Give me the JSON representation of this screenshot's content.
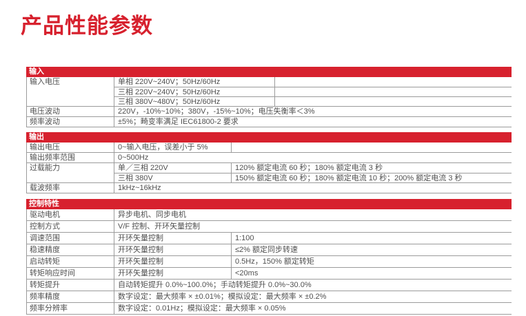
{
  "page": {
    "title": "产品性能参数"
  },
  "colors": {
    "accent_red": "#D7212E",
    "border_gray": "#9b9b9b",
    "text_gray": "#4f4f4f"
  },
  "table": {
    "sections": [
      {
        "header": "输入",
        "groups": [
          {
            "label": "输入电压",
            "lines": [
              {
                "cells": [
                  "单相 220V~240V；50Hz/60Hz",
                  ""
                ]
              },
              {
                "cells": [
                  "三相 220V~240V；50Hz/60Hz",
                  ""
                ]
              },
              {
                "cells": [
                  "三相 380V~480V；50Hz/60Hz",
                  ""
                ]
              }
            ]
          },
          {
            "label": "电压波动",
            "lines": [
              {
                "cells": [
                  "220V，-10%~10%；380V，-15%~10%；电压失衡率＜3%"
                ]
              }
            ]
          },
          {
            "label": "频率波动",
            "lines": [
              {
                "cells": [
                  "±5%；畸变率满足 IEC61800-2 要求"
                ]
              }
            ]
          }
        ]
      },
      {
        "header": "输出",
        "groups": [
          {
            "label": "输出电压",
            "lines": [
              {
                "cells": [
                  "0~输入电压，误差小于 5%",
                  ""
                ]
              }
            ]
          },
          {
            "label": "输出频率范围",
            "lines": [
              {
                "cells": [
                  "0~500Hz"
                ]
              }
            ]
          },
          {
            "label": "过载能力",
            "lines": [
              {
                "cells": [
                  "单／三相 220V",
                  "120% 额定电流 60 秒；180% 额定电流 3 秒"
                ]
              },
              {
                "cells": [
                  "三相 380V",
                  "150% 额定电流 60 秒；180% 额定电流 10 秒；200% 额定电流 3 秒"
                ]
              }
            ]
          },
          {
            "label": "载波频率",
            "lines": [
              {
                "cells": [
                  "1kHz~16kHz"
                ]
              }
            ]
          }
        ]
      },
      {
        "header": "控制特性",
        "groups": [
          {
            "label": "驱动电机",
            "lines": [
              {
                "cells": [
                  "异步电机、同步电机"
                ]
              }
            ]
          },
          {
            "label": "控制方式",
            "lines": [
              {
                "cells": [
                  "V/F 控制、开环矢量控制"
                ]
              }
            ]
          },
          {
            "label": "调速范围",
            "lines": [
              {
                "cells": [
                  "开环矢量控制",
                  "1:100"
                ]
              }
            ]
          },
          {
            "label": "稳速精度",
            "lines": [
              {
                "cells": [
                  "开环矢量控制",
                  "≤2% 额定同步转速"
                ]
              }
            ]
          },
          {
            "label": "启动转矩",
            "lines": [
              {
                "cells": [
                  "开环矢量控制",
                  "0.5Hz，150% 额定转矩"
                ]
              }
            ]
          },
          {
            "label": "转矩响应时间",
            "lines": [
              {
                "cells": [
                  "开环矢量控制",
                  "<20ms"
                ]
              }
            ]
          },
          {
            "label": "转矩提升",
            "lines": [
              {
                "cells": [
                  "自动转矩提升 0.0%~100.0%；手动转矩提升 0.0%~30.0%"
                ]
              }
            ]
          },
          {
            "label": "频率精度",
            "lines": [
              {
                "cells": [
                  "数字设定：最大频率 × ±0.01%；模拟设定：最大频率 × ±0.2%"
                ]
              }
            ]
          },
          {
            "label": "频率分辨率",
            "lines": [
              {
                "cells": [
                  "数字设定：0.01Hz；模拟设定：最大频率 × 0.05%"
                ]
              }
            ]
          }
        ]
      }
    ]
  }
}
